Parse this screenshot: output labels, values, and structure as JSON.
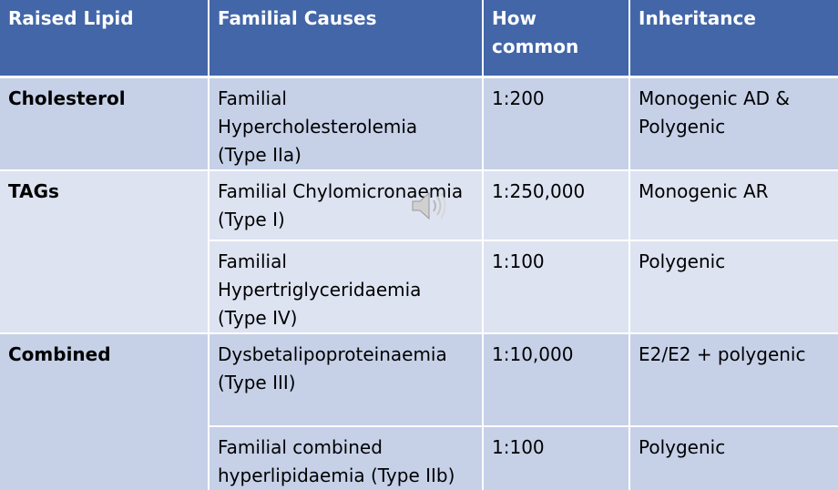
{
  "table": {
    "headers": {
      "raised_lipid": "Raised Lipid",
      "familial_causes": "Familial Causes",
      "how_common_line1": "How",
      "how_common_line2": "common",
      "inheritance": "Inheritance"
    },
    "rows": [
      {
        "lipid": "Cholesterol",
        "cause_lines": [
          "Familial",
          "Hypercholesterolemia",
          "(Type IIa)"
        ],
        "frequency": "1:200",
        "inheritance_lines": [
          "Monogenic AD &",
          "Polygenic"
        ]
      },
      {
        "lipid": "TAGs",
        "cause_lines": [
          "Familial Chylomicronaemia",
          "(Type I)"
        ],
        "frequency": "1:250,000",
        "inheritance_lines": [
          "Monogenic AR"
        ]
      },
      {
        "lipid": "",
        "cause_lines": [
          "Familial",
          "Hypertriglyceridaemia",
          "(Type IV)"
        ],
        "frequency": "1:100",
        "inheritance_lines": [
          "Polygenic"
        ]
      },
      {
        "lipid": "Combined",
        "cause_lines": [
          "Dysbetalipoproteinaemia",
          "(Type III)"
        ],
        "frequency": "1:10,000",
        "inheritance_lines": [
          "E2/E2 + polygenic"
        ]
      },
      {
        "lipid": "",
        "cause_lines": [
          "Familial combined",
          "hyperlipidaemia (Type IIb)"
        ],
        "frequency": "1:100",
        "inheritance_lines": [
          "Polygenic"
        ]
      }
    ]
  },
  "colors": {
    "header_bg": "#4266a8",
    "row_dark_bg": "#c6d1e8",
    "row_light_bg": "#dde3f1"
  },
  "icons": {
    "audio": "speaker-icon"
  }
}
